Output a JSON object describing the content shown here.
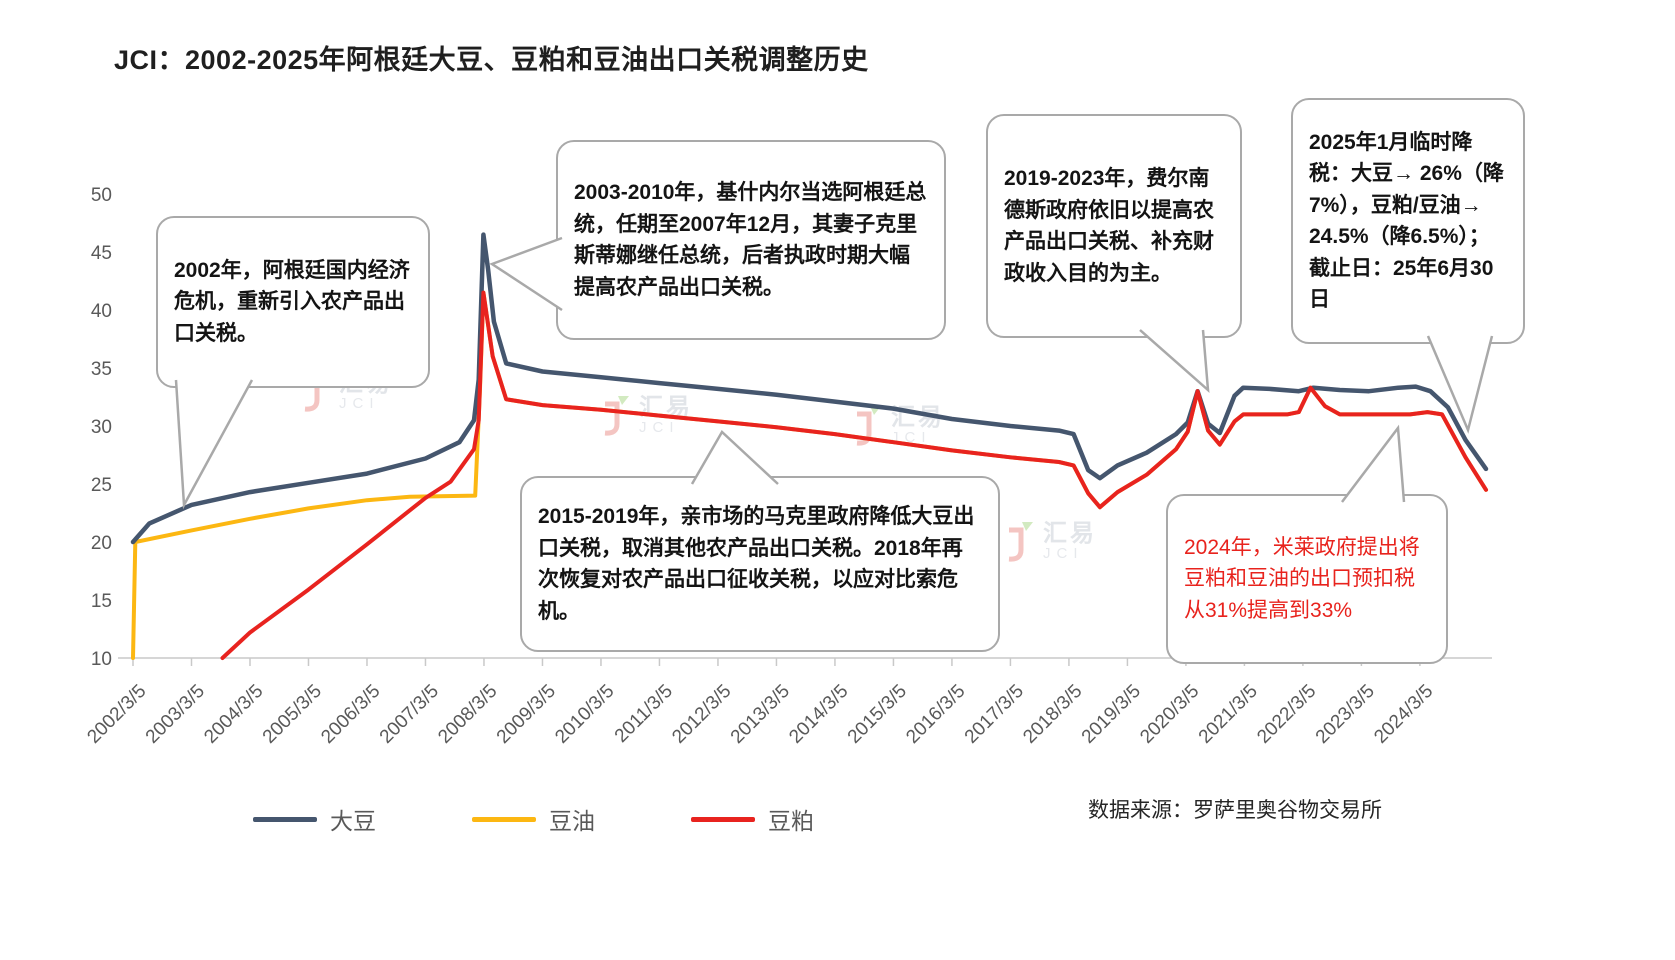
{
  "title": "JCI：2002-2025年阿根廷大豆、豆粕和豆油出口关税调整历史",
  "source": "数据来源：罗萨里奥谷物交易所",
  "watermark": {
    "cn": "汇易",
    "en": "JCI"
  },
  "legend": [
    {
      "key": "soybean",
      "name": "大豆",
      "color": "#45566e"
    },
    {
      "key": "soyoil",
      "name": "豆油",
      "color": "#fcb712"
    },
    {
      "key": "soymeal",
      "name": "豆粕",
      "color": "#e8231f"
    }
  ],
  "callouts": {
    "c2002": "2002年，阿根廷国内经济危机，重新引入农产品出口关税。",
    "c2003": "2003-2010年，基什内尔当选阿根廷总统，任期至2007年12月，其妻子克里斯蒂娜继任总统，后者执政时期大幅提高农产品出口关税。",
    "c2015": "2015-2019年，亲市场的马克里政府降低大豆出口关税，取消其他农产品出口关税。2018年再次恢复对农产品出口征收关税，以应对比索危机。",
    "c2019": "2019-2023年，费尔南德斯政府依旧以提高农产品出口关税、补充财政收入目的为主。",
    "c2025": "2025年1月临时降税：大豆→ 26%（降7%），豆粕/豆油→ 24.5%（降6.5%）；截止日：25年6月30日",
    "c2024": "2024年，米莱政府提出将豆粕和豆油的出口预扣税从31%提高到33%"
  },
  "chart_data": {
    "type": "line",
    "title": "JCI：2002-2025年阿根廷大豆、豆粕和豆油出口关税调整历史",
    "xlabel": "",
    "ylabel": "",
    "xlim": [
      2002.17,
      2025.3
    ],
    "ylim": [
      10,
      50
    ],
    "yticks": [
      10,
      15,
      20,
      25,
      30,
      35,
      40,
      45,
      50
    ],
    "xtick_labels": [
      "2002/3/5",
      "2003/3/5",
      "2004/3/5",
      "2005/3/5",
      "2006/3/5",
      "2007/3/5",
      "2008/3/5",
      "2009/3/5",
      "2010/3/5",
      "2011/3/5",
      "2012/3/5",
      "2013/3/5",
      "2014/3/5",
      "2015/3/5",
      "2016/3/5",
      "2017/3/5",
      "2018/3/5",
      "2019/3/5",
      "2020/3/5",
      "2021/3/5",
      "2022/3/5",
      "2023/3/5",
      "2024/3/5"
    ],
    "grid": false,
    "legend_position": "bottom",
    "series": [
      {
        "key": "soyoil",
        "name": "豆油",
        "color": "#fcb712",
        "width": 4,
        "points": [
          [
            2002.17,
            10.0
          ],
          [
            2002.21,
            20.0
          ],
          [
            2003.17,
            21.0
          ],
          [
            2004.17,
            22.0
          ],
          [
            2005.17,
            22.9
          ],
          [
            2006.17,
            23.6
          ],
          [
            2006.9,
            23.9
          ],
          [
            2008.02,
            24.0
          ],
          [
            2008.1,
            33.0
          ],
          [
            2008.16,
            41.5
          ],
          [
            2008.32,
            36.0
          ],
          [
            2008.55,
            32.3
          ],
          [
            2009.17,
            31.8
          ],
          [
            2010.17,
            31.4
          ],
          [
            2011.17,
            30.9
          ],
          [
            2012.17,
            30.4
          ],
          [
            2013.17,
            29.9
          ],
          [
            2014.17,
            29.3
          ],
          [
            2015.17,
            28.6
          ],
          [
            2016.17,
            27.9
          ],
          [
            2017.17,
            27.3
          ],
          [
            2018.0,
            26.9
          ],
          [
            2018.25,
            26.6
          ],
          [
            2018.5,
            24.2
          ],
          [
            2018.7,
            23.0
          ],
          [
            2019.0,
            24.3
          ],
          [
            2019.5,
            25.8
          ],
          [
            2020.0,
            28.0
          ],
          [
            2020.2,
            29.5
          ],
          [
            2020.37,
            33.0
          ],
          [
            2020.55,
            29.6
          ],
          [
            2020.75,
            28.4
          ],
          [
            2021.0,
            30.4
          ],
          [
            2021.15,
            31.0
          ],
          [
            2021.9,
            31.0
          ],
          [
            2022.1,
            31.2
          ],
          [
            2022.3,
            33.3
          ],
          [
            2022.55,
            31.7
          ],
          [
            2022.8,
            31.0
          ],
          [
            2023.5,
            31.0
          ],
          [
            2024.0,
            31.0
          ],
          [
            2024.3,
            31.2
          ],
          [
            2024.55,
            31.0
          ],
          [
            2024.95,
            27.3
          ],
          [
            2025.3,
            24.5
          ]
        ]
      },
      {
        "key": "soybean",
        "name": "大豆",
        "color": "#45566e",
        "width": 4.5,
        "points": [
          [
            2002.17,
            20.0
          ],
          [
            2002.45,
            21.6
          ],
          [
            2003.17,
            23.2
          ],
          [
            2004.17,
            24.3
          ],
          [
            2005.17,
            25.1
          ],
          [
            2006.17,
            25.9
          ],
          [
            2007.17,
            27.2
          ],
          [
            2007.75,
            28.6
          ],
          [
            2008.0,
            30.5
          ],
          [
            2008.08,
            34.0
          ],
          [
            2008.16,
            46.5
          ],
          [
            2008.24,
            43.5
          ],
          [
            2008.34,
            39.0
          ],
          [
            2008.55,
            35.4
          ],
          [
            2009.17,
            34.7
          ],
          [
            2010.17,
            34.2
          ],
          [
            2011.17,
            33.7
          ],
          [
            2012.17,
            33.2
          ],
          [
            2013.17,
            32.7
          ],
          [
            2014.17,
            32.1
          ],
          [
            2015.17,
            31.5
          ],
          [
            2016.17,
            30.6
          ],
          [
            2017.17,
            30.0
          ],
          [
            2018.0,
            29.6
          ],
          [
            2018.25,
            29.3
          ],
          [
            2018.5,
            26.2
          ],
          [
            2018.7,
            25.5
          ],
          [
            2019.0,
            26.6
          ],
          [
            2019.5,
            27.7
          ],
          [
            2020.0,
            29.3
          ],
          [
            2020.2,
            30.3
          ],
          [
            2020.37,
            33.0
          ],
          [
            2020.55,
            30.2
          ],
          [
            2020.75,
            29.4
          ],
          [
            2021.0,
            32.6
          ],
          [
            2021.15,
            33.3
          ],
          [
            2021.6,
            33.2
          ],
          [
            2022.1,
            33.0
          ],
          [
            2022.35,
            33.3
          ],
          [
            2022.8,
            33.1
          ],
          [
            2023.3,
            33.0
          ],
          [
            2023.8,
            33.3
          ],
          [
            2024.1,
            33.4
          ],
          [
            2024.35,
            33.0
          ],
          [
            2024.65,
            31.6
          ],
          [
            2024.95,
            28.8
          ],
          [
            2025.3,
            26.3
          ]
        ]
      },
      {
        "key": "soymeal",
        "name": "豆粕",
        "color": "#e8231f",
        "width": 4,
        "points": [
          [
            2003.7,
            10.0
          ],
          [
            2004.17,
            12.2
          ],
          [
            2005.17,
            15.9
          ],
          [
            2006.17,
            19.8
          ],
          [
            2007.17,
            23.8
          ],
          [
            2007.6,
            25.2
          ],
          [
            2008.0,
            28.0
          ],
          [
            2008.08,
            30.5
          ],
          [
            2008.16,
            41.5
          ],
          [
            2008.32,
            36.0
          ],
          [
            2008.55,
            32.3
          ],
          [
            2009.17,
            31.8
          ],
          [
            2010.17,
            31.4
          ],
          [
            2011.17,
            30.9
          ],
          [
            2012.17,
            30.4
          ],
          [
            2013.17,
            29.9
          ],
          [
            2014.17,
            29.3
          ],
          [
            2015.17,
            28.6
          ],
          [
            2016.17,
            27.9
          ],
          [
            2017.17,
            27.3
          ],
          [
            2018.0,
            26.9
          ],
          [
            2018.25,
            26.6
          ],
          [
            2018.5,
            24.2
          ],
          [
            2018.7,
            23.0
          ],
          [
            2019.0,
            24.3
          ],
          [
            2019.5,
            25.8
          ],
          [
            2020.0,
            28.0
          ],
          [
            2020.2,
            29.5
          ],
          [
            2020.37,
            33.0
          ],
          [
            2020.55,
            29.6
          ],
          [
            2020.75,
            28.4
          ],
          [
            2021.0,
            30.4
          ],
          [
            2021.15,
            31.0
          ],
          [
            2021.9,
            31.0
          ],
          [
            2022.1,
            31.2
          ],
          [
            2022.3,
            33.3
          ],
          [
            2022.55,
            31.7
          ],
          [
            2022.8,
            31.0
          ],
          [
            2023.5,
            31.0
          ],
          [
            2024.0,
            31.0
          ],
          [
            2024.3,
            31.2
          ],
          [
            2024.55,
            31.0
          ],
          [
            2024.95,
            27.3
          ],
          [
            2025.3,
            24.5
          ]
        ]
      }
    ]
  }
}
